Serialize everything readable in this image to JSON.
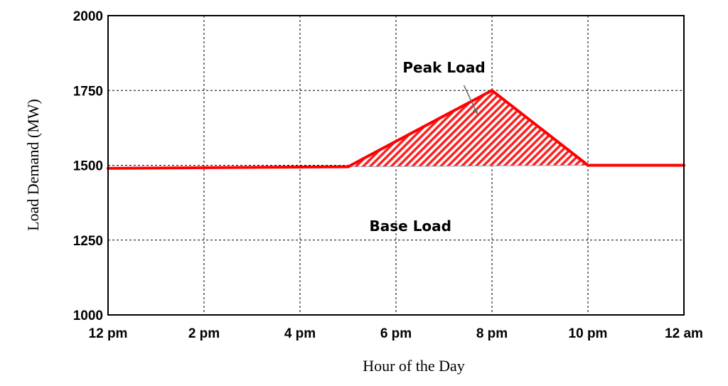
{
  "chart_data": {
    "type": "line",
    "xlabel": "Hour of the Day",
    "ylabel": "Load Demand (MW)",
    "x_ticks": [
      {
        "hour": 12,
        "label": "12 pm"
      },
      {
        "hour": 14,
        "label": "2 pm"
      },
      {
        "hour": 16,
        "label": "4 pm"
      },
      {
        "hour": 18,
        "label": "6 pm"
      },
      {
        "hour": 20,
        "label": "8 pm"
      },
      {
        "hour": 22,
        "label": "10 pm"
      },
      {
        "hour": 24,
        "label": "12 am"
      }
    ],
    "y_ticks": [
      1000,
      1250,
      1500,
      1750,
      2000
    ],
    "xlim": [
      12,
      24
    ],
    "ylim": [
      1000,
      2000
    ],
    "grid": true,
    "series": [
      {
        "x": [
          12,
          17,
          20,
          22,
          24
        ],
        "y": [
          1490,
          1495,
          1750,
          1500,
          1500
        ],
        "color": "#ff0000"
      }
    ],
    "shaded_region": {
      "x": [
        17,
        20,
        22
      ],
      "y": [
        1495,
        1750,
        1500
      ],
      "base": 1495,
      "pattern": "diagonal-hatch",
      "color": "#ff0000"
    },
    "annotations": [
      {
        "text": "Peak Load",
        "x": 19,
        "y": 1810,
        "arrow_to": {
          "x": 19.7,
          "y": 1670
        }
      },
      {
        "text": "Base Load",
        "x": 18.3,
        "y": 1280
      }
    ]
  }
}
